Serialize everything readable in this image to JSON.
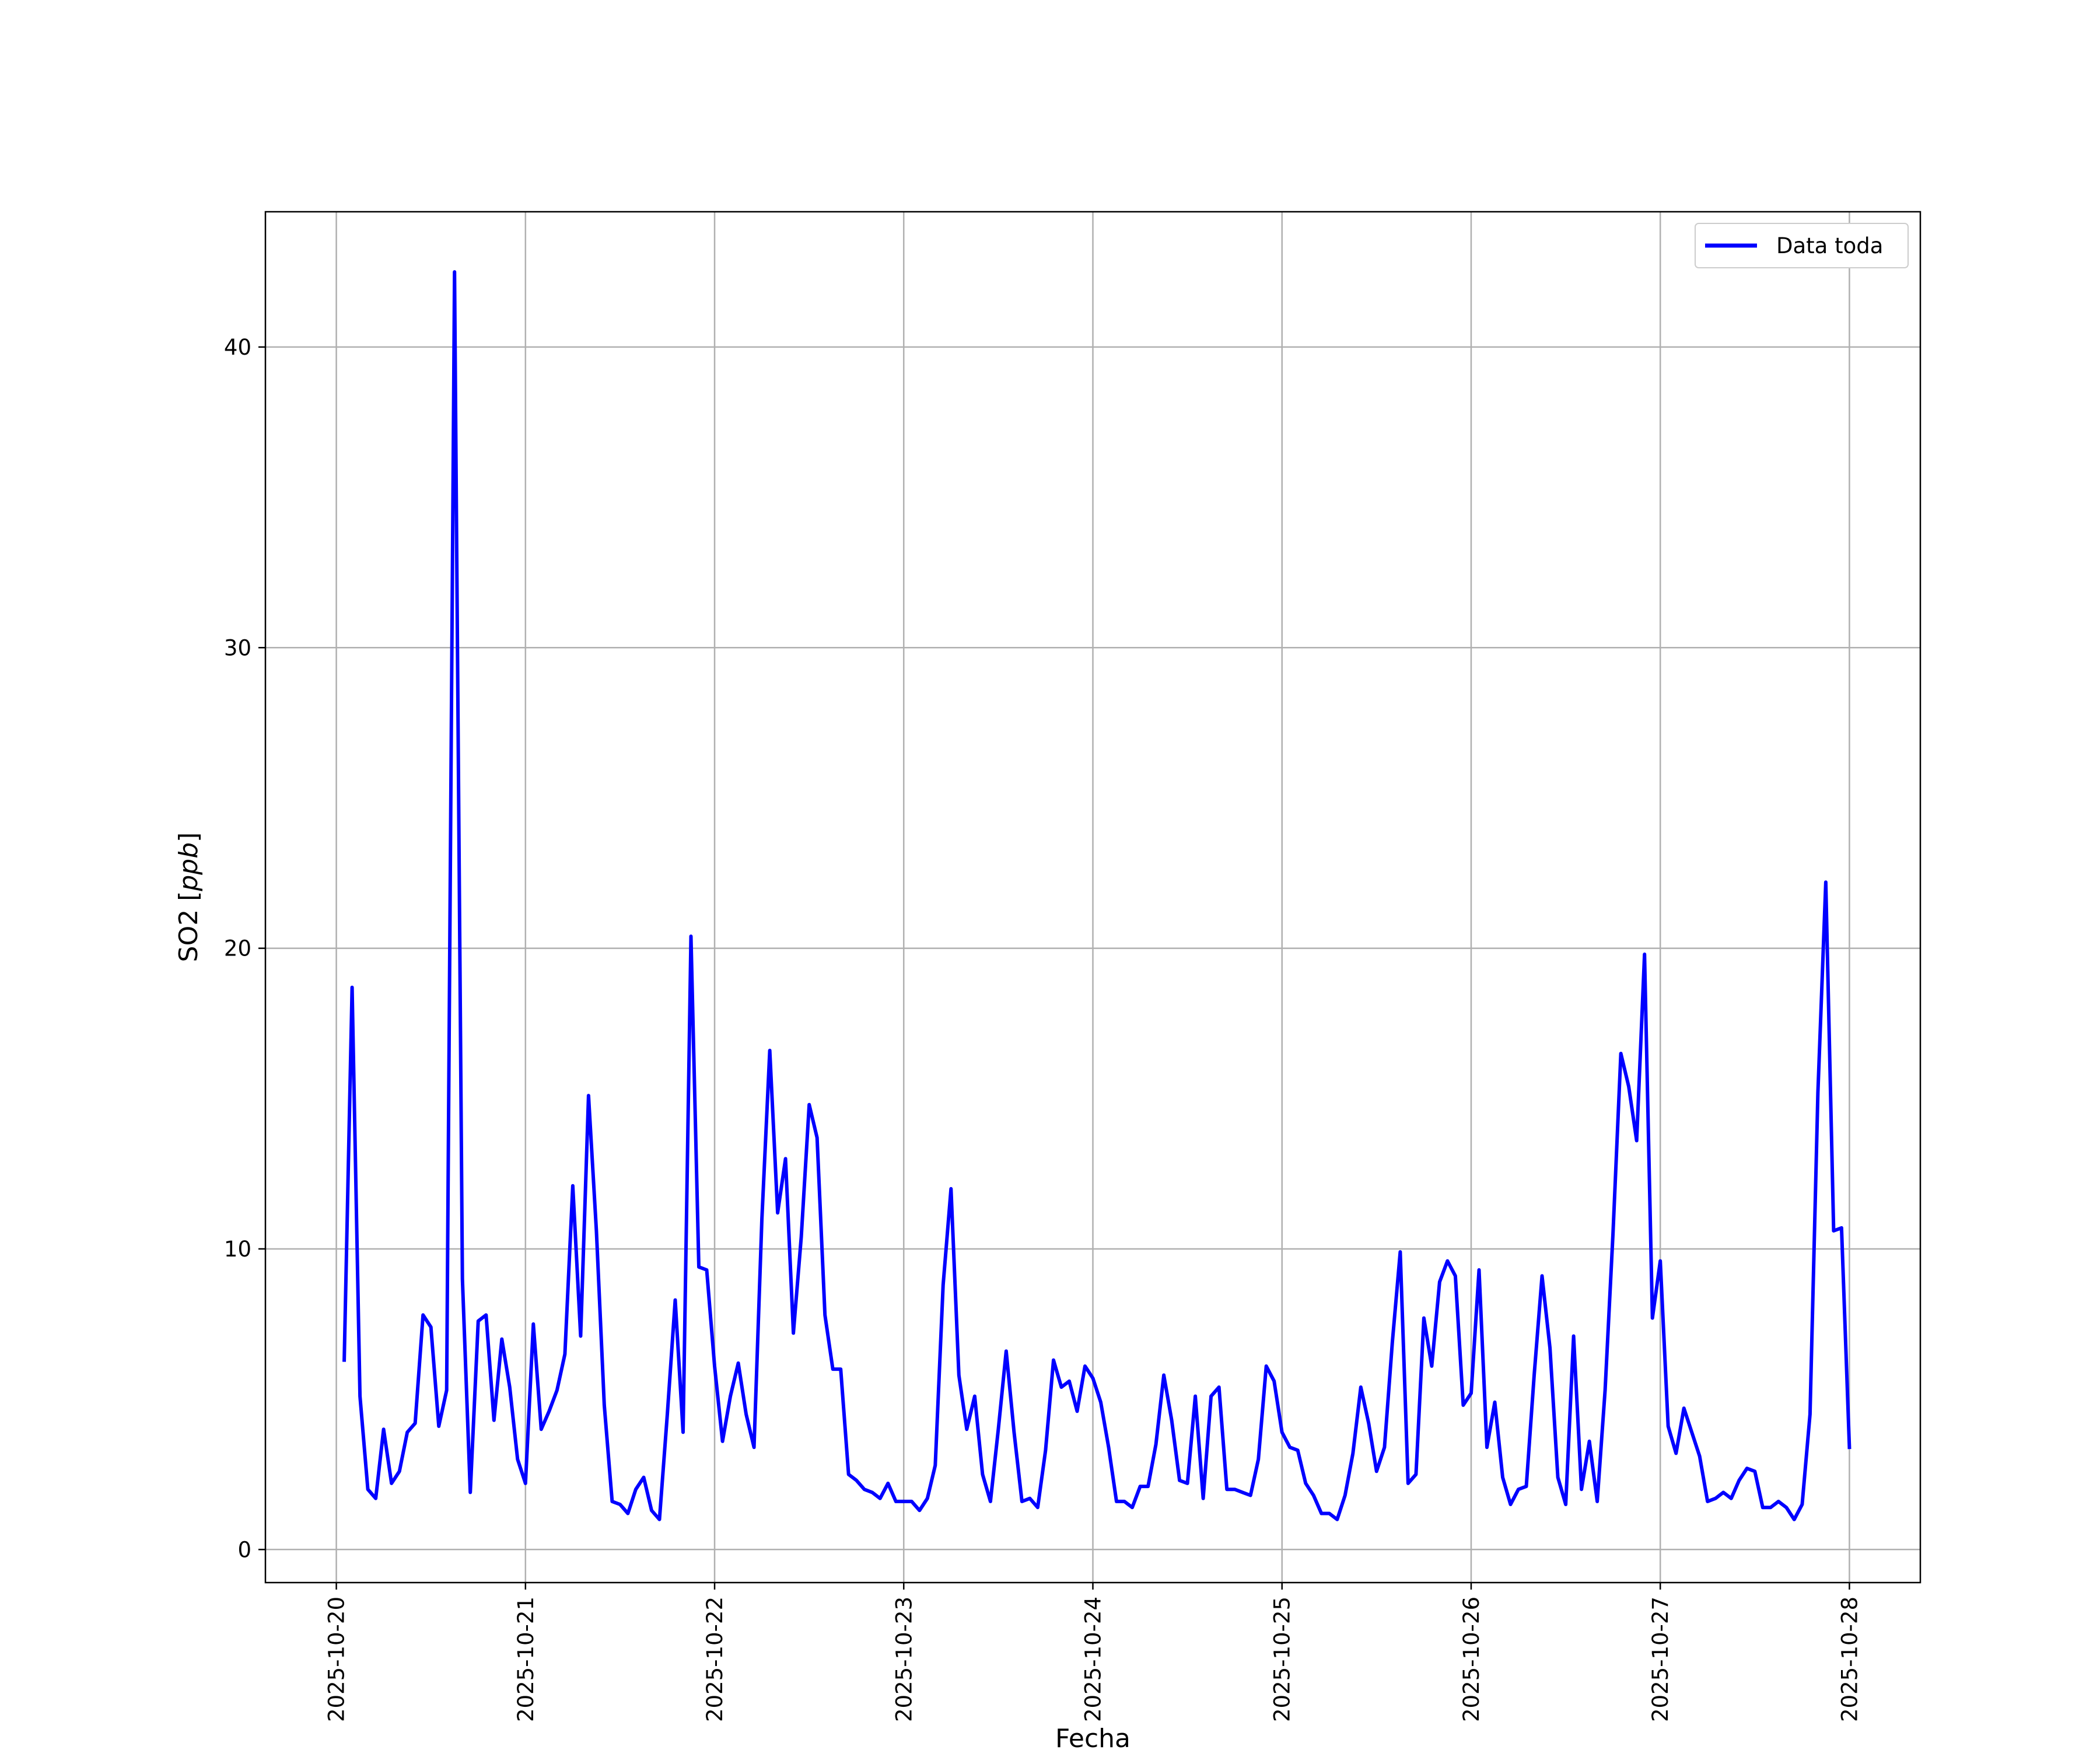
{
  "chart_data": {
    "type": "line",
    "xlabel": "Fecha",
    "ylabel": "SO2 [ppb]",
    "ylabel_parts": {
      "prefix": "SO2 [",
      "unit": "ppb",
      "suffix": "]"
    },
    "x_tick_labels": [
      "2025-10-20",
      "2025-10-21",
      "2025-10-22",
      "2025-10-23",
      "2025-10-24",
      "2025-10-25",
      "2025-10-26",
      "2025-10-27",
      "2025-10-28"
    ],
    "y_ticks": [
      0,
      10,
      20,
      30,
      40
    ],
    "xlim": [
      "2025-10-19T15:00",
      "2025-10-28T09:00"
    ],
    "ylim": [
      -1.1,
      44.5
    ],
    "grid": true,
    "legend": {
      "position": "top-right"
    },
    "colors": {
      "series": "#0000ff",
      "grid": "#b0b0b0"
    },
    "series": [
      {
        "name": "Data toda",
        "x": [
          "2025-10-20T01:00",
          "2025-10-20T02:00",
          "2025-10-20T03:00",
          "2025-10-20T04:00",
          "2025-10-20T05:00",
          "2025-10-20T06:00",
          "2025-10-20T07:00",
          "2025-10-20T08:00",
          "2025-10-20T09:00",
          "2025-10-20T10:00",
          "2025-10-20T11:00",
          "2025-10-20T12:00",
          "2025-10-20T13:00",
          "2025-10-20T14:00",
          "2025-10-20T15:00",
          "2025-10-20T16:00",
          "2025-10-20T17:00",
          "2025-10-20T18:00",
          "2025-10-20T19:00",
          "2025-10-20T20:00",
          "2025-10-20T21:00",
          "2025-10-20T22:00",
          "2025-10-20T23:00",
          "2025-10-21T00:00",
          "2025-10-21T01:00",
          "2025-10-21T02:00",
          "2025-10-21T03:00",
          "2025-10-21T04:00",
          "2025-10-21T05:00",
          "2025-10-21T06:00",
          "2025-10-21T07:00",
          "2025-10-21T08:00",
          "2025-10-21T09:00",
          "2025-10-21T10:00",
          "2025-10-21T11:00",
          "2025-10-21T12:00",
          "2025-10-21T13:00",
          "2025-10-21T14:00",
          "2025-10-21T15:00",
          "2025-10-21T16:00",
          "2025-10-21T17:00",
          "2025-10-21T18:00",
          "2025-10-21T19:00",
          "2025-10-21T20:00",
          "2025-10-21T21:00",
          "2025-10-21T22:00",
          "2025-10-21T23:00",
          "2025-10-22T00:00",
          "2025-10-22T01:00",
          "2025-10-22T02:00",
          "2025-10-22T03:00",
          "2025-10-22T04:00",
          "2025-10-22T05:00",
          "2025-10-22T06:00",
          "2025-10-22T07:00",
          "2025-10-22T08:00",
          "2025-10-22T09:00",
          "2025-10-22T10:00",
          "2025-10-22T11:00",
          "2025-10-22T12:00",
          "2025-10-22T13:00",
          "2025-10-22T14:00",
          "2025-10-22T15:00",
          "2025-10-22T16:00",
          "2025-10-22T17:00",
          "2025-10-22T18:00",
          "2025-10-22T19:00",
          "2025-10-22T20:00",
          "2025-10-22T21:00",
          "2025-10-22T22:00",
          "2025-10-22T23:00",
          "2025-10-23T00:00",
          "2025-10-23T01:00",
          "2025-10-23T02:00",
          "2025-10-23T03:00",
          "2025-10-23T04:00",
          "2025-10-23T05:00",
          "2025-10-23T06:00",
          "2025-10-23T07:00",
          "2025-10-23T08:00",
          "2025-10-23T09:00",
          "2025-10-23T10:00",
          "2025-10-23T11:00",
          "2025-10-23T12:00",
          "2025-10-23T13:00",
          "2025-10-23T14:00",
          "2025-10-23T15:00",
          "2025-10-23T16:00",
          "2025-10-23T17:00",
          "2025-10-23T18:00",
          "2025-10-23T19:00",
          "2025-10-23T20:00",
          "2025-10-23T21:00",
          "2025-10-23T22:00",
          "2025-10-23T23:00",
          "2025-10-24T00:00",
          "2025-10-24T01:00",
          "2025-10-24T02:00",
          "2025-10-24T03:00",
          "2025-10-24T04:00",
          "2025-10-24T05:00",
          "2025-10-24T06:00",
          "2025-10-24T07:00",
          "2025-10-24T08:00",
          "2025-10-24T09:00",
          "2025-10-24T10:00",
          "2025-10-24T11:00",
          "2025-10-24T12:00",
          "2025-10-24T13:00",
          "2025-10-24T14:00",
          "2025-10-24T15:00",
          "2025-10-24T16:00",
          "2025-10-24T17:00",
          "2025-10-24T18:00",
          "2025-10-24T19:00",
          "2025-10-24T20:00",
          "2025-10-24T21:00",
          "2025-10-24T22:00",
          "2025-10-24T23:00",
          "2025-10-25T00:00",
          "2025-10-25T01:00",
          "2025-10-25T02:00",
          "2025-10-25T03:00",
          "2025-10-25T04:00",
          "2025-10-25T05:00",
          "2025-10-25T06:00",
          "2025-10-25T07:00",
          "2025-10-25T08:00",
          "2025-10-25T09:00",
          "2025-10-25T10:00",
          "2025-10-25T11:00",
          "2025-10-25T12:00",
          "2025-10-25T13:00",
          "2025-10-25T14:00",
          "2025-10-25T15:00",
          "2025-10-25T16:00",
          "2025-10-25T17:00",
          "2025-10-25T18:00",
          "2025-10-25T19:00",
          "2025-10-25T20:00",
          "2025-10-25T21:00",
          "2025-10-25T22:00",
          "2025-10-25T23:00",
          "2025-10-26T00:00",
          "2025-10-26T01:00",
          "2025-10-26T02:00",
          "2025-10-26T03:00",
          "2025-10-26T04:00",
          "2025-10-26T05:00",
          "2025-10-26T06:00",
          "2025-10-26T07:00",
          "2025-10-26T08:00",
          "2025-10-26T09:00",
          "2025-10-26T10:00",
          "2025-10-26T11:00",
          "2025-10-26T12:00",
          "2025-10-26T13:00",
          "2025-10-26T14:00",
          "2025-10-26T15:00",
          "2025-10-26T16:00",
          "2025-10-26T17:00",
          "2025-10-26T18:00",
          "2025-10-26T19:00",
          "2025-10-26T20:00",
          "2025-10-26T21:00",
          "2025-10-26T22:00",
          "2025-10-26T23:00",
          "2025-10-27T00:00",
          "2025-10-27T01:00",
          "2025-10-27T02:00",
          "2025-10-27T03:00",
          "2025-10-27T04:00",
          "2025-10-27T05:00",
          "2025-10-27T06:00",
          "2025-10-27T07:00",
          "2025-10-27T08:00",
          "2025-10-27T09:00",
          "2025-10-27T10:00",
          "2025-10-27T11:00",
          "2025-10-27T12:00",
          "2025-10-27T13:00",
          "2025-10-27T14:00",
          "2025-10-27T15:00",
          "2025-10-27T16:00",
          "2025-10-27T17:00",
          "2025-10-27T18:00",
          "2025-10-27T19:00",
          "2025-10-27T20:00",
          "2025-10-27T21:00",
          "2025-10-27T22:00",
          "2025-10-27T23:00",
          "2025-10-28T00:00"
        ],
        "values": [
          6.3,
          18.7,
          5.1,
          2.0,
          1.7,
          4.0,
          2.2,
          2.6,
          3.9,
          4.2,
          7.8,
          7.4,
          4.1,
          5.3,
          42.5,
          9.0,
          1.9,
          7.6,
          7.8,
          4.3,
          7.0,
          5.4,
          3.0,
          2.2,
          7.5,
          4.0,
          4.6,
          5.3,
          6.5,
          12.1,
          7.1,
          15.1,
          10.6,
          4.8,
          1.6,
          1.5,
          1.2,
          2.0,
          2.4,
          1.3,
          1.0,
          4.5,
          8.3,
          3.9,
          20.4,
          9.4,
          9.3,
          6.1,
          3.6,
          5.1,
          6.2,
          4.5,
          3.4,
          11.0,
          16.6,
          11.2,
          13.0,
          7.2,
          10.4,
          14.8,
          13.7,
          7.8,
          6.0,
          6.0,
          2.5,
          2.3,
          2.0,
          1.9,
          1.7,
          2.2,
          1.6,
          1.6,
          1.6,
          1.3,
          1.7,
          2.8,
          8.8,
          12.0,
          5.8,
          4.0,
          5.1,
          2.5,
          1.6,
          4.0,
          6.6,
          3.9,
          1.6,
          1.7,
          1.4,
          3.3,
          6.3,
          5.4,
          5.6,
          4.6,
          6.1,
          5.7,
          4.9,
          3.4,
          1.6,
          1.6,
          1.4,
          2.1,
          2.1,
          3.5,
          5.8,
          4.3,
          2.3,
          2.2,
          5.1,
          1.7,
          5.1,
          5.4,
          2.0,
          2.0,
          1.9,
          1.8,
          3.0,
          6.1,
          5.6,
          3.9,
          3.4,
          3.3,
          2.2,
          1.8,
          1.2,
          1.2,
          1.0,
          1.8,
          3.2,
          5.4,
          4.2,
          2.6,
          3.4,
          6.9,
          9.9,
          2.2,
          2.5,
          7.7,
          6.1,
          8.9,
          9.6,
          9.1,
          4.8,
          5.2,
          9.3,
          3.4,
          4.9,
          2.4,
          1.5,
          2.0,
          2.1,
          5.8,
          9.1,
          6.7,
          2.4,
          1.5,
          7.1,
          2.0,
          3.6,
          1.6,
          5.3,
          10.5,
          16.5,
          15.4,
          13.6,
          19.8,
          7.7,
          9.6,
          4.1,
          3.2,
          4.7,
          3.9,
          3.1,
          1.6,
          1.7,
          1.9,
          1.7,
          2.3,
          2.7,
          2.6,
          1.4,
          1.4,
          1.6,
          1.4,
          1.0,
          1.5,
          4.5,
          15.2,
          22.2,
          10.6,
          10.7,
          3.4
        ]
      }
    ]
  }
}
